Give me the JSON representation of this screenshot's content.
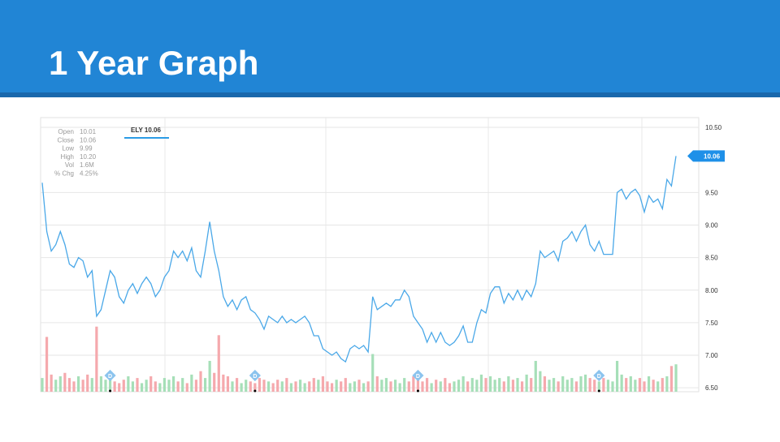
{
  "header": {
    "title": "1 Year Graph"
  },
  "chart_data": {
    "type": "line",
    "series": [
      {
        "name": "ELY 10.06",
        "color": "#4aa8e8",
        "values": [
          9.65,
          8.9,
          8.6,
          8.7,
          8.9,
          8.7,
          8.4,
          8.35,
          8.5,
          8.45,
          8.2,
          8.3,
          7.6,
          7.7,
          8.0,
          8.3,
          8.2,
          7.9,
          7.8,
          8.0,
          8.1,
          7.95,
          8.1,
          8.2,
          8.1,
          7.9,
          8.0,
          8.2,
          8.3,
          8.6,
          8.5,
          8.6,
          8.45,
          8.65,
          8.3,
          8.2,
          8.6,
          9.05,
          8.6,
          8.3,
          7.9,
          7.75,
          7.85,
          7.7,
          7.85,
          7.9,
          7.7,
          7.65,
          7.55,
          7.4,
          7.6,
          7.55,
          7.5,
          7.6,
          7.5,
          7.55,
          7.5,
          7.55,
          7.6,
          7.5,
          7.3,
          7.3,
          7.1,
          7.05,
          7.0,
          7.05,
          6.95,
          6.9,
          7.1,
          7.15,
          7.1,
          7.15,
          7.05,
          7.9,
          7.7,
          7.75,
          7.8,
          7.75,
          7.85,
          7.85,
          8.0,
          7.9,
          7.6,
          7.5,
          7.4,
          7.2,
          7.35,
          7.2,
          7.35,
          7.2,
          7.15,
          7.2,
          7.3,
          7.45,
          7.2,
          7.2,
          7.5,
          7.7,
          7.65,
          7.95,
          8.05,
          8.05,
          7.8,
          7.95,
          7.85,
          8.0,
          7.85,
          8.0,
          7.9,
          8.1,
          8.6,
          8.5,
          8.55,
          8.6,
          8.45,
          8.75,
          8.8,
          8.9,
          8.75,
          8.9,
          9.0,
          8.7,
          8.6,
          8.75,
          8.55,
          8.55,
          8.55,
          9.5,
          9.55,
          9.4,
          9.5,
          9.55,
          9.45,
          9.2,
          9.45,
          9.35,
          9.4,
          9.25,
          9.7,
          9.6,
          10.06
        ]
      }
    ],
    "volume": {
      "up_color": "#a6dfb8",
      "down_color": "#f5a9ad",
      "ylim": [
        0,
        16
      ],
      "values": [
        0.8,
        3.2,
        1.0,
        0.7,
        0.9,
        1.1,
        0.8,
        0.6,
        0.9,
        0.7,
        1.0,
        0.8,
        3.8,
        0.9,
        0.7,
        0.8,
        0.6,
        0.5,
        0.7,
        0.9,
        0.6,
        0.8,
        0.5,
        0.7,
        0.9,
        0.6,
        0.5,
        0.8,
        0.7,
        0.9,
        0.6,
        0.8,
        0.5,
        1.0,
        0.7,
        1.2,
        0.8,
        1.8,
        1.1,
        3.3,
        1.0,
        0.9,
        0.6,
        0.8,
        0.5,
        0.7,
        0.6,
        0.5,
        0.8,
        0.7,
        0.6,
        0.5,
        0.7,
        0.6,
        0.8,
        0.5,
        0.6,
        0.7,
        0.5,
        0.6,
        0.8,
        0.7,
        0.9,
        0.6,
        0.5,
        0.7,
        0.6,
        0.8,
        0.5,
        0.6,
        0.7,
        0.5,
        0.6,
        2.2,
        0.9,
        0.7,
        0.8,
        0.6,
        0.7,
        0.5,
        0.8,
        0.6,
        0.9,
        0.7,
        0.6,
        0.8,
        0.5,
        0.7,
        0.6,
        0.8,
        0.5,
        0.6,
        0.7,
        0.9,
        0.6,
        0.8,
        0.7,
        1.0,
        0.8,
        0.9,
        0.7,
        0.8,
        0.6,
        0.9,
        0.7,
        0.8,
        0.6,
        1.0,
        0.8,
        1.8,
        1.2,
        0.9,
        0.7,
        0.8,
        0.6,
        0.9,
        0.7,
        0.8,
        0.6,
        0.9,
        1.0,
        0.8,
        0.7,
        0.6,
        0.8,
        0.7,
        0.6,
        1.8,
        1.0,
        0.8,
        0.9,
        0.7,
        0.8,
        0.6,
        0.9,
        0.7,
        0.6,
        0.8,
        0.9,
        1.5,
        1.6
      ]
    },
    "dividends": {
      "label": "D",
      "at": [
        15,
        47,
        83,
        123
      ]
    },
    "ylim": [
      6.44,
      10.65
    ],
    "yticks": [
      {
        "value": 10.5,
        "label": "10.50"
      },
      {
        "value": 9.5,
        "label": "9.50"
      },
      {
        "value": 9,
        "label": "9.00"
      },
      {
        "value": 8.5,
        "label": "8.50"
      },
      {
        "value": 8,
        "label": "8.00"
      },
      {
        "value": 7.5,
        "label": "7.50"
      },
      {
        "value": 7,
        "label": "7.00"
      },
      {
        "value": 6.5,
        "label": "6.50"
      }
    ],
    "grid": true,
    "last_price_label": "10.06",
    "stats": [
      {
        "label": "Open",
        "value": "10.01"
      },
      {
        "label": "Close",
        "value": "10.06"
      },
      {
        "label": "Low",
        "value": "9.99"
      },
      {
        "label": "High",
        "value": "10.20"
      },
      {
        "label": "Vol",
        "value": "1.6M"
      },
      {
        "label": "% Chg",
        "value": "4.25%"
      }
    ]
  }
}
